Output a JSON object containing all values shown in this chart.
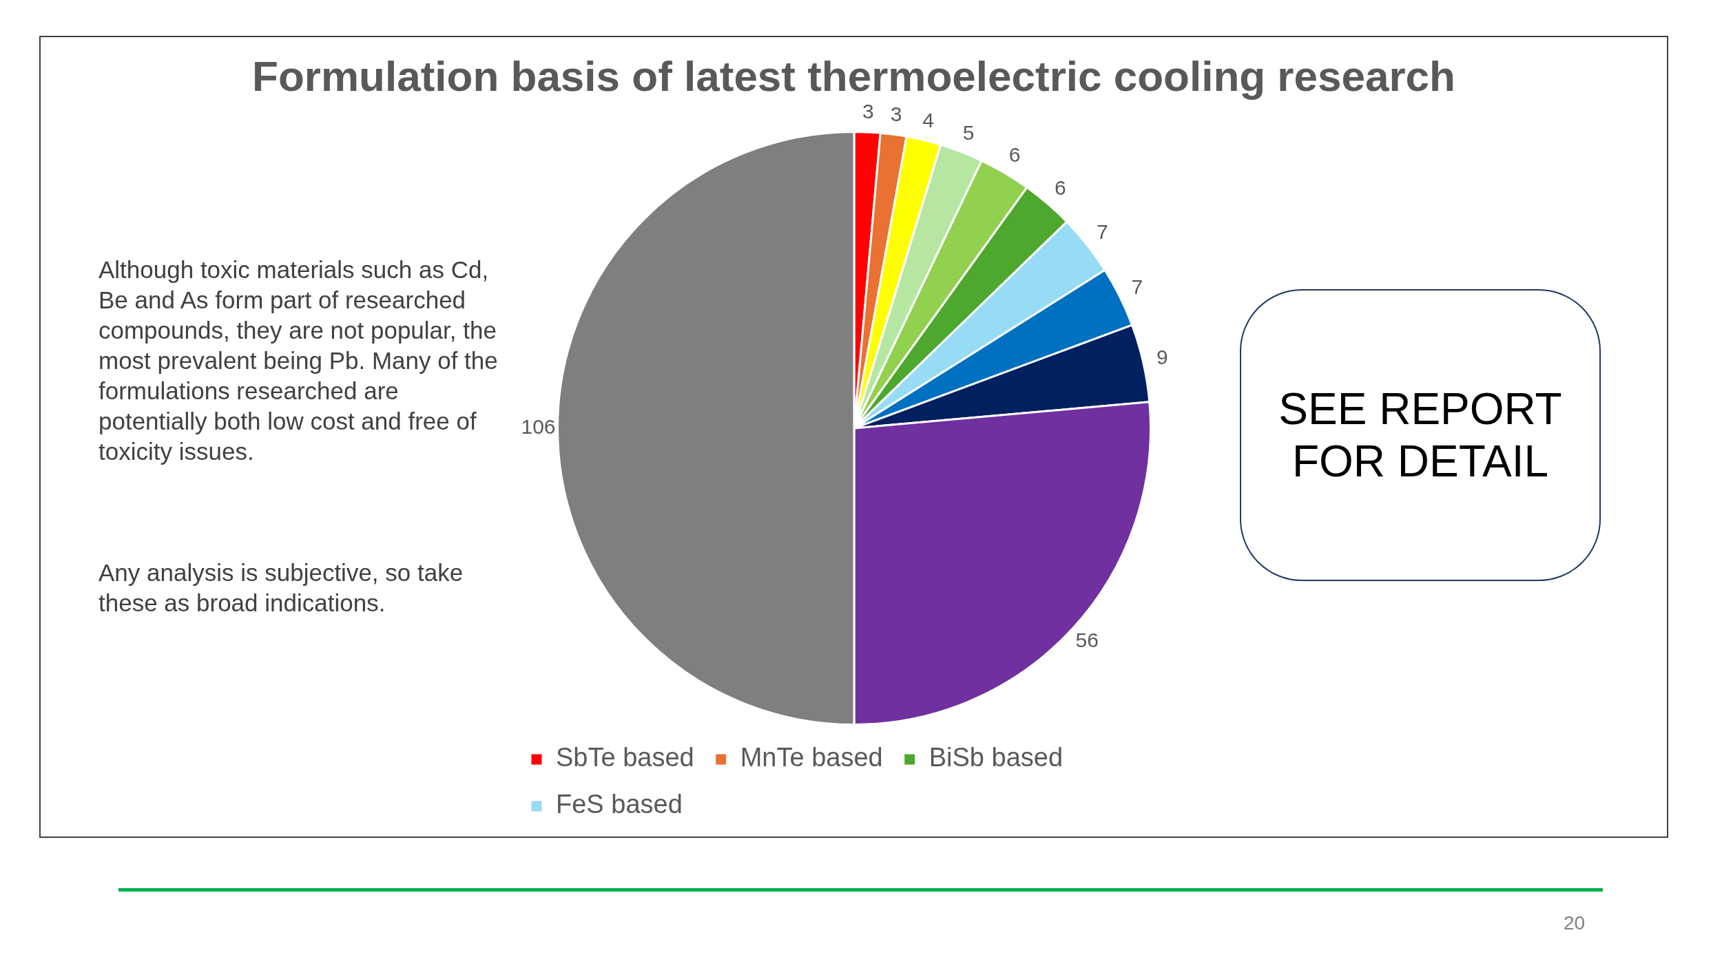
{
  "chart_data": {
    "type": "pie",
    "title": "Formulation basis of latest thermoelectric cooling research",
    "categories": [
      "SbTe based",
      "MnTe based",
      null,
      null,
      null,
      "BiSb based",
      "FeS based",
      null,
      null,
      null,
      null
    ],
    "values": [
      3,
      3,
      4,
      5,
      6,
      6,
      7,
      7,
      9,
      56,
      106
    ],
    "colors": [
      "#ff0000",
      "#e97132",
      "#ffff00",
      "#b5e6a2",
      "#92d050",
      "#4ea72e",
      "#97dbf5",
      "#0070c0",
      "#002060",
      "#7030a0",
      "#7f7f7f"
    ],
    "data_labels": true,
    "legend": "bottom",
    "annotations": [
      "Although toxic materials such as Cd, Be and As form part of researched compounds, they are not popular, the most prevalent being Pb. Many of the formulations researched are potentially both low cost and free of toxicity issues.",
      "Any analysis is subjective, so take these as broad indications.",
      "SEE REPORT FOR DETAIL",
      "20"
    ]
  }
}
